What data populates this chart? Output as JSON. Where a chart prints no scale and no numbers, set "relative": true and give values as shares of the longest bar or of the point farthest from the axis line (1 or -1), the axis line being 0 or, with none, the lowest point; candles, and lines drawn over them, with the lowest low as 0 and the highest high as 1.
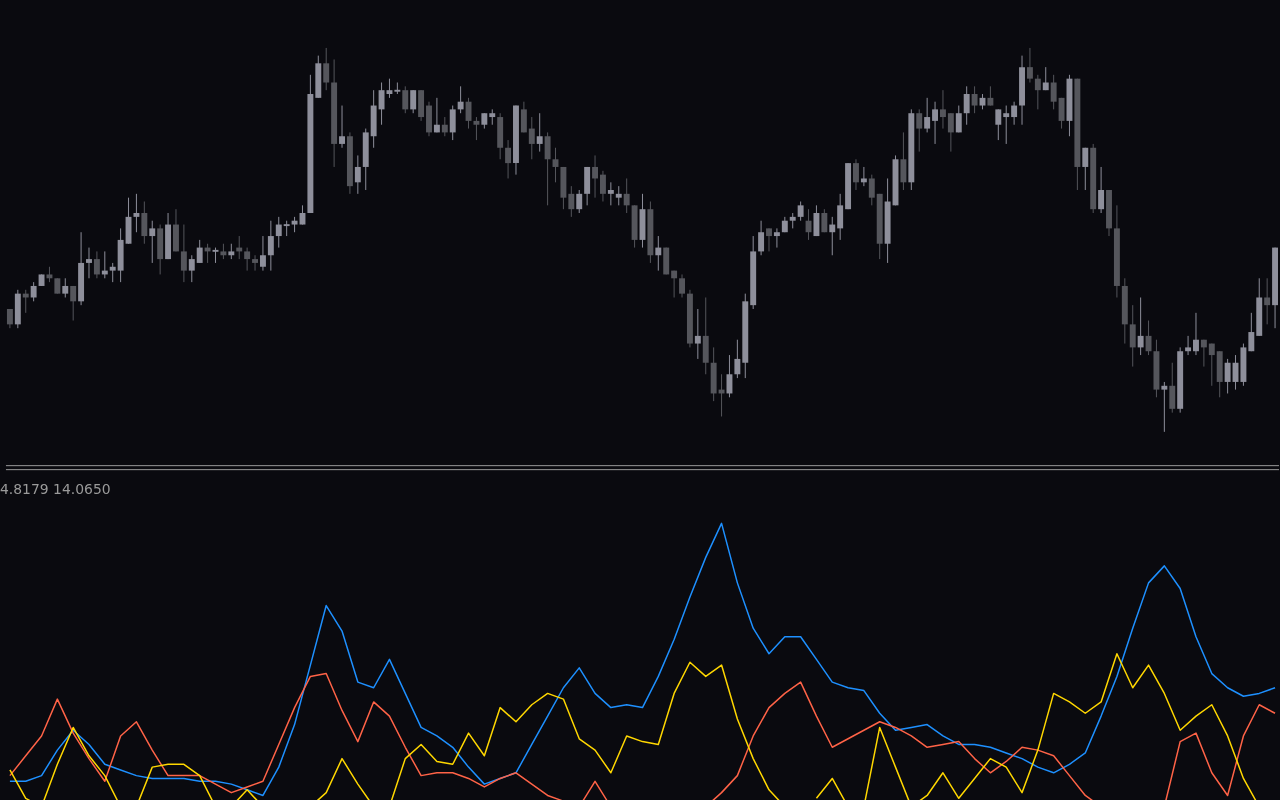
{
  "chart_data": [
    {
      "type": "candlestick",
      "relative": true,
      "tick_labels": false,
      "colors": [
        "#55565c",
        "#8e8f9b",
        "#55565c",
        "#8e8f9b",
        "#8e8f9b",
        "#55565c",
        "#55565c",
        "#8e8f9b",
        "#55565c",
        "#8e8f9b",
        "#8e8f9b",
        "#55565c",
        "#8e8f9b",
        "#8e8f9b",
        "#8e8f9b",
        "#8e8f9b",
        "#8e8f9b",
        "#55565c",
        "#8e8f9b",
        "#55565c",
        "#8e8f9b",
        "#55565c",
        "#55565c",
        "#8e8f9b",
        "#8e8f9b",
        "#55565c",
        "#8e8f9b",
        "#55565c",
        "#8e8f9b",
        "#55565c",
        "#55565c",
        "#55565c",
        "#8e8f9b",
        "#8e8f9b",
        "#8e8f9b",
        "#8e8f9b",
        "#8e8f9b",
        "#8e8f9b",
        "#8e8f9b",
        "#8e8f9b",
        "#55565c",
        "#55565c",
        "#8e8f9b",
        "#55565c",
        "#8e8f9b",
        "#8e8f9b",
        "#8e8f9b",
        "#8e8f9b",
        "#8e8f9b",
        "#8e8f9b",
        "#55565c",
        "#8e8f9b",
        "#55565c",
        "#55565c",
        "#8e8f9b",
        "#55565c",
        "#8e8f9b",
        "#8e8f9b",
        "#55565c",
        "#55565c",
        "#8e8f9b",
        "#8e8f9b",
        "#55565c",
        "#55565c",
        "#8e8f9b",
        "#55565c",
        "#55565c",
        "#8e8f9b",
        "#55565c",
        "#55565c",
        "#55565c",
        "#55565c",
        "#8e8f9b",
        "#8e8f9b",
        "#55565c",
        "#55565c",
        "#8e8f9b",
        "#8e8f9b",
        "#55565c",
        "#55565c",
        "#8e8f9b",
        "#55565c",
        "#8e8f9b",
        "#55565c",
        "#55565c",
        "#55565c",
        "#55565c",
        "#8e8f9b",
        "#55565c",
        "#55565c",
        "#55565c",
        "#8e8f9b",
        "#8e8f9b",
        "#8e8f9b",
        "#8e8f9b",
        "#8e8f9b",
        "#55565c",
        "#8e8f9b",
        "#8e8f9b",
        "#8e8f9b",
        "#8e8f9b",
        "#55565c",
        "#8e8f9b",
        "#55565c",
        "#8e8f9b",
        "#8e8f9b",
        "#8e8f9b",
        "#55565c",
        "#8e8f9b",
        "#55565c",
        "#55565c",
        "#8e8f9b",
        "#8e8f9b",
        "#55565c",
        "#8e8f9b",
        "#55565c",
        "#8e8f9b",
        "#8e8f9b",
        "#55565c",
        "#55565c",
        "#8e8f9b",
        "#8e8f9b",
        "#55565c",
        "#8e8f9b",
        "#55565c",
        "#8e8f9b",
        "#8e8f9b",
        "#8e8f9b",
        "#8e8f9b",
        "#55565c",
        "#55565c",
        "#8e8f9b",
        "#55565c",
        "#55565c",
        "#8e8f9b",
        "#55565c",
        "#8e8f9b",
        "#55565c",
        "#8e8f9b",
        "#55565c",
        "#55565c",
        "#55565c",
        "#55565c",
        "#8e8f9b",
        "#55565c",
        "#55565c",
        "#8e8f9b",
        "#55565c",
        "#8e8f9b",
        "#8e8f9b",
        "#8e8f9b",
        "#55565c",
        "#55565c",
        "#55565c",
        "#8e8f9b",
        "#8e8f9b",
        "#8e8f9b",
        "#8e8f9b",
        "#8e8f9b",
        "#55565c",
        "#8e8f9b"
      ],
      "categories": [
        null,
        null,
        null,
        null,
        null,
        null,
        null,
        null,
        null,
        null,
        null,
        null,
        null,
        null,
        null,
        null,
        null,
        null,
        null,
        null,
        null,
        null,
        null,
        null,
        null,
        null,
        null,
        null,
        null,
        null,
        null,
        null,
        null,
        null,
        null,
        null,
        null,
        null,
        null,
        null,
        null,
        null,
        null,
        null,
        null,
        null,
        null,
        null,
        null,
        null,
        null,
        null,
        null,
        null,
        null,
        null,
        null,
        null,
        null,
        null,
        null,
        null,
        null,
        null,
        null,
        null,
        null,
        null,
        null,
        null,
        null,
        null,
        null,
        null,
        null,
        null,
        null,
        null,
        null,
        null,
        null,
        null,
        null,
        null,
        null,
        null,
        null,
        null,
        null,
        null,
        null,
        null,
        null,
        null,
        null,
        null,
        null,
        null,
        null,
        null,
        null,
        null,
        null,
        null,
        null,
        null,
        null,
        null,
        null,
        null,
        null,
        null,
        null,
        null,
        null,
        null,
        null,
        null,
        null,
        null,
        null,
        null,
        null,
        null,
        null,
        null,
        null,
        null,
        null,
        null,
        null,
        null,
        null,
        null,
        null,
        null,
        null,
        null,
        null,
        null,
        null,
        null,
        null,
        null,
        null,
        null,
        null,
        null,
        null,
        null,
        null,
        null,
        null,
        null,
        null,
        null,
        null,
        null,
        null,
        null,
        null
      ],
      "ohlc": [
        [
          0.32,
          0.32,
          0.27,
          0.28
        ],
        [
          0.28,
          0.37,
          0.27,
          0.36
        ],
        [
          0.36,
          0.37,
          0.31,
          0.35
        ],
        [
          0.35,
          0.39,
          0.34,
          0.38
        ],
        [
          0.38,
          0.41,
          0.38,
          0.41
        ],
        [
          0.41,
          0.43,
          0.39,
          0.4
        ],
        [
          0.4,
          0.4,
          0.36,
          0.36
        ],
        [
          0.36,
          0.4,
          0.35,
          0.38
        ],
        [
          0.38,
          0.38,
          0.29,
          0.34
        ],
        [
          0.34,
          0.52,
          0.33,
          0.44
        ],
        [
          0.44,
          0.48,
          0.4,
          0.45
        ],
        [
          0.45,
          0.47,
          0.4,
          0.41
        ],
        [
          0.41,
          0.47,
          0.4,
          0.42
        ],
        [
          0.42,
          0.44,
          0.39,
          0.43
        ],
        [
          0.42,
          0.53,
          0.39,
          0.5
        ],
        [
          0.49,
          0.61,
          0.49,
          0.56
        ],
        [
          0.56,
          0.62,
          0.52,
          0.57
        ],
        [
          0.57,
          0.6,
          0.49,
          0.51
        ],
        [
          0.51,
          0.55,
          0.44,
          0.53
        ],
        [
          0.53,
          0.54,
          0.41,
          0.45
        ],
        [
          0.45,
          0.57,
          0.45,
          0.54
        ],
        [
          0.54,
          0.58,
          0.47,
          0.47
        ],
        [
          0.47,
          0.54,
          0.39,
          0.42
        ],
        [
          0.42,
          0.46,
          0.39,
          0.45
        ],
        [
          0.44,
          0.5,
          0.44,
          0.48
        ],
        [
          0.48,
          0.49,
          0.44,
          0.47
        ],
        [
          0.469,
          0.48,
          0.44,
          0.474
        ],
        [
          0.47,
          0.49,
          0.45,
          0.46
        ],
        [
          0.46,
          0.49,
          0.45,
          0.47
        ],
        [
          0.48,
          0.51,
          0.45,
          0.47
        ],
        [
          0.47,
          0.48,
          0.42,
          0.45
        ],
        [
          0.45,
          0.46,
          0.42,
          0.44
        ],
        [
          0.43,
          0.51,
          0.42,
          0.46
        ],
        [
          0.46,
          0.55,
          0.42,
          0.51
        ],
        [
          0.51,
          0.56,
          0.48,
          0.54
        ],
        [
          0.536,
          0.55,
          0.51,
          0.541
        ],
        [
          0.54,
          0.56,
          0.52,
          0.55
        ],
        [
          0.54,
          0.59,
          0.54,
          0.57
        ],
        [
          0.57,
          0.93,
          0.57,
          0.88
        ],
        [
          0.87,
          0.98,
          0.87,
          0.96
        ],
        [
          0.96,
          1,
          0.89,
          0.91
        ],
        [
          0.91,
          0.97,
          0.69,
          0.75
        ],
        [
          0.75,
          0.85,
          0.74,
          0.77
        ],
        [
          0.77,
          0.78,
          0.62,
          0.64
        ],
        [
          0.65,
          0.72,
          0.62,
          0.69
        ],
        [
          0.69,
          0.79,
          0.63,
          0.78
        ],
        [
          0.77,
          0.89,
          0.74,
          0.85
        ],
        [
          0.84,
          0.91,
          0.8,
          0.89
        ],
        [
          0.88,
          0.92,
          0.87,
          0.89
        ],
        [
          0.886,
          0.91,
          0.88,
          0.891
        ],
        [
          0.89,
          0.9,
          0.83,
          0.84
        ],
        [
          0.84,
          0.89,
          0.83,
          0.89
        ],
        [
          0.89,
          0.89,
          0.81,
          0.82
        ],
        [
          0.85,
          0.86,
          0.77,
          0.78
        ],
        [
          0.78,
          0.87,
          0.78,
          0.8
        ],
        [
          0.8,
          0.82,
          0.77,
          0.78
        ],
        [
          0.78,
          0.85,
          0.76,
          0.84
        ],
        [
          0.84,
          0.9,
          0.83,
          0.86
        ],
        [
          0.86,
          0.87,
          0.79,
          0.81
        ],
        [
          0.81,
          0.82,
          0.76,
          0.8
        ],
        [
          0.8,
          0.83,
          0.79,
          0.83
        ],
        [
          0.82,
          0.84,
          0.8,
          0.83
        ],
        [
          0.82,
          0.83,
          0.71,
          0.74
        ],
        [
          0.74,
          0.76,
          0.66,
          0.7
        ],
        [
          0.7,
          0.85,
          0.67,
          0.85
        ],
        [
          0.84,
          0.86,
          0.78,
          0.78
        ],
        [
          0.79,
          0.82,
          0.71,
          0.75
        ],
        [
          0.75,
          0.83,
          0.73,
          0.77
        ],
        [
          0.77,
          0.78,
          0.59,
          0.71
        ],
        [
          0.71,
          0.74,
          0.65,
          0.69
        ],
        [
          0.69,
          0.69,
          0.58,
          0.61
        ],
        [
          0.62,
          0.64,
          0.56,
          0.58
        ],
        [
          0.58,
          0.63,
          0.57,
          0.62
        ],
        [
          0.62,
          0.69,
          0.59,
          0.69
        ],
        [
          0.69,
          0.72,
          0.61,
          0.66
        ],
        [
          0.67,
          0.68,
          0.6,
          0.62
        ],
        [
          0.62,
          0.65,
          0.59,
          0.63
        ],
        [
          0.61,
          0.64,
          0.59,
          0.62
        ],
        [
          0.62,
          0.66,
          0.57,
          0.59
        ],
        [
          0.59,
          0.59,
          0.48,
          0.5
        ],
        [
          0.5,
          0.62,
          0.48,
          0.58
        ],
        [
          0.58,
          0.6,
          0.44,
          0.46
        ],
        [
          0.46,
          0.51,
          0.42,
          0.48
        ],
        [
          0.48,
          0.48,
          0.41,
          0.41
        ],
        [
          0.42,
          0.42,
          0.35,
          0.4
        ],
        [
          0.4,
          0.41,
          0.35,
          0.36
        ],
        [
          0.36,
          0.37,
          0.22,
          0.23
        ],
        [
          0.23,
          0.32,
          0.19,
          0.25
        ],
        [
          0.25,
          0.35,
          0.15,
          0.18
        ],
        [
          0.18,
          0.22,
          0.08,
          0.1
        ],
        [
          0.11,
          0.15,
          0.04,
          0.1
        ],
        [
          0.1,
          0.2,
          0.09,
          0.15
        ],
        [
          0.15,
          0.24,
          0.14,
          0.19
        ],
        [
          0.18,
          0.36,
          0.14,
          0.34
        ],
        [
          0.33,
          0.51,
          0.32,
          0.47
        ],
        [
          0.47,
          0.55,
          0.46,
          0.52
        ],
        [
          0.53,
          0.53,
          0.47,
          0.51
        ],
        [
          0.51,
          0.53,
          0.48,
          0.52
        ],
        [
          0.52,
          0.56,
          0.52,
          0.55
        ],
        [
          0.55,
          0.57,
          0.53,
          0.56
        ],
        [
          0.56,
          0.6,
          0.55,
          0.59
        ],
        [
          0.55,
          0.58,
          0.5,
          0.52
        ],
        [
          0.51,
          0.59,
          0.51,
          0.57
        ],
        [
          0.57,
          0.58,
          0.52,
          0.52
        ],
        [
          0.52,
          0.56,
          0.46,
          0.54
        ],
        [
          0.53,
          0.62,
          0.5,
          0.59
        ],
        [
          0.58,
          0.7,
          0.58,
          0.7
        ],
        [
          0.7,
          0.71,
          0.63,
          0.65
        ],
        [
          0.65,
          0.69,
          0.64,
          0.66
        ],
        [
          0.66,
          0.67,
          0.59,
          0.61
        ],
        [
          0.62,
          0.62,
          0.45,
          0.49
        ],
        [
          0.49,
          0.66,
          0.44,
          0.6
        ],
        [
          0.59,
          0.72,
          0.59,
          0.71
        ],
        [
          0.71,
          0.78,
          0.63,
          0.65
        ],
        [
          0.65,
          0.84,
          0.63,
          0.83
        ],
        [
          0.83,
          0.84,
          0.73,
          0.79
        ],
        [
          0.79,
          0.87,
          0.78,
          0.82
        ],
        [
          0.81,
          0.86,
          0.75,
          0.84
        ],
        [
          0.84,
          0.89,
          0.79,
          0.82
        ],
        [
          0.83,
          0.83,
          0.73,
          0.78
        ],
        [
          0.78,
          0.85,
          0.78,
          0.83
        ],
        [
          0.83,
          0.9,
          0.8,
          0.88
        ],
        [
          0.88,
          0.9,
          0.83,
          0.85
        ],
        [
          0.85,
          0.88,
          0.84,
          0.87
        ],
        [
          0.87,
          0.9,
          0.85,
          0.85
        ],
        [
          0.8,
          0.84,
          0.76,
          0.84
        ],
        [
          0.82,
          0.85,
          0.75,
          0.83
        ],
        [
          0.82,
          0.86,
          0.8,
          0.85
        ],
        [
          0.85,
          0.98,
          0.8,
          0.95
        ],
        [
          0.95,
          1,
          0.91,
          0.92
        ],
        [
          0.92,
          0.93,
          0.84,
          0.89
        ],
        [
          0.89,
          0.95,
          0.89,
          0.91
        ],
        [
          0.91,
          0.93,
          0.84,
          0.86
        ],
        [
          0.87,
          0.87,
          0.79,
          0.81
        ],
        [
          0.81,
          0.93,
          0.77,
          0.92
        ],
        [
          0.92,
          0.92,
          0.63,
          0.69
        ],
        [
          0.69,
          0.74,
          0.63,
          0.74
        ],
        [
          0.74,
          0.75,
          0.57,
          0.58
        ],
        [
          0.58,
          0.69,
          0.57,
          0.63
        ],
        [
          0.63,
          0.63,
          0.51,
          0.53
        ],
        [
          0.53,
          0.59,
          0.35,
          0.38
        ],
        [
          0.38,
          0.4,
          0.23,
          0.28
        ],
        [
          0.28,
          0.33,
          0.17,
          0.22
        ],
        [
          0.22,
          0.35,
          0.2,
          0.25
        ],
        [
          0.25,
          0.29,
          0.2,
          0.21
        ],
        [
          0.21,
          0.24,
          0.09,
          0.11
        ],
        [
          0.11,
          0.13,
          0,
          0.12
        ],
        [
          0.12,
          0.18,
          0.05,
          0.06
        ],
        [
          0.06,
          0.22,
          0.05,
          0.21
        ],
        [
          0.21,
          0.25,
          0.2,
          0.22
        ],
        [
          0.21,
          0.31,
          0.2,
          0.24
        ],
        [
          0.24,
          0.24,
          0.17,
          0.22
        ],
        [
          0.23,
          0.23,
          0.12,
          0.2
        ],
        [
          0.21,
          0.21,
          0.09,
          0.13
        ],
        [
          0.13,
          0.19,
          0.1,
          0.18
        ],
        [
          0.13,
          0.2,
          0.11,
          0.18
        ],
        [
          0.13,
          0.23,
          0.12,
          0.22
        ],
        [
          0.21,
          0.31,
          0.21,
          0.26
        ],
        [
          0.25,
          0.4,
          0.25,
          0.35
        ],
        [
          0.35,
          0.4,
          0.28,
          0.33
        ],
        [
          0.33,
          0.48,
          0.27,
          0.48
        ]
      ]
    },
    {
      "type": "line",
      "relative": true,
      "tick_labels": false,
      "annotations": [
        "4.8179 14.0650"
      ],
      "categories": [
        null,
        null,
        null,
        null,
        null,
        null,
        null,
        null,
        null,
        null,
        null,
        null,
        null,
        null,
        null,
        null,
        null,
        null,
        null,
        null,
        null,
        null,
        null,
        null,
        null,
        null,
        null,
        null,
        null,
        null,
        null,
        null,
        null,
        null,
        null,
        null,
        null,
        null,
        null,
        null,
        null,
        null,
        null,
        null,
        null,
        null,
        null,
        null,
        null,
        null,
        null,
        null,
        null,
        null,
        null,
        null,
        null,
        null,
        null,
        null,
        null,
        null,
        null,
        null,
        null,
        null,
        null,
        null,
        null,
        null,
        null,
        null,
        null,
        null,
        null,
        null,
        null,
        null,
        null,
        null,
        null
      ],
      "series": [
        {
          "color": "#1e90ff",
          "values": [
            0.09,
            0.09,
            0.11,
            0.2,
            0.27,
            0.22,
            0.15,
            0.13,
            0.11,
            0.1,
            0.1,
            0.1,
            0.09,
            0.09,
            0.08,
            0.06,
            0.04,
            0.14,
            0.29,
            0.5,
            0.71,
            0.62,
            0.44,
            0.42,
            0.52,
            0.4,
            0.28,
            0.25,
            0.21,
            0.14,
            0.08,
            0.1,
            0.12,
            0.22,
            0.32,
            0.42,
            0.49,
            0.4,
            0.35,
            0.36,
            0.35,
            0.46,
            0.59,
            0.74,
            0.88,
            1.0,
            0.79,
            0.63,
            0.54,
            0.6,
            0.6,
            0.52,
            0.44,
            0.42,
            0.41,
            0.33,
            0.27,
            0.28,
            0.29,
            0.25,
            0.22,
            0.22,
            0.21,
            0.19,
            0.17,
            0.14,
            0.12,
            0.15,
            0.19,
            0.32,
            0.46,
            0.63,
            0.79,
            0.85,
            0.77,
            0.6,
            0.47,
            0.42,
            0.39,
            0.4,
            0.42
          ]
        },
        {
          "color": "#ff6347",
          "values": [
            0.11,
            0.18,
            0.25,
            0.38,
            0.26,
            0.17,
            0.09,
            0.25,
            0.3,
            0.2,
            0.11,
            0.11,
            0.11,
            0.08,
            0.05,
            0.07,
            0.09,
            0.22,
            0.35,
            0.46,
            0.47,
            0.34,
            0.23,
            0.37,
            0.32,
            0.21,
            0.11,
            0.12,
            0.12,
            0.1,
            0.07,
            0.1,
            0.12,
            0.08,
            0.04,
            0.02,
            0,
            0.09,
            0,
            null,
            null,
            null,
            null,
            null,
            0,
            0.05,
            0.11,
            0.25,
            0.35,
            0.4,
            0.44,
            0.32,
            0.21,
            0.24,
            0.27,
            0.3,
            0.28,
            0.25,
            0.21,
            0.22,
            0.23,
            0.17,
            0.12,
            0.16,
            0.21,
            0.2,
            0.18,
            0.11,
            0.04,
            0,
            null,
            null,
            null,
            0,
            0.23,
            0.26,
            0.12,
            0.04,
            0.25,
            0.36,
            0.33
          ]
        },
        {
          "color": "#ffd700",
          "values": [
            0.13,
            0.03,
            0,
            0.15,
            0.28,
            0.18,
            0.11,
            0,
            0,
            0.14,
            0.15,
            0.15,
            0.11,
            0,
            0,
            0.06,
            0,
            null,
            null,
            0,
            0.05,
            0.17,
            0.08,
            0,
            0,
            0.17,
            0.22,
            0.16,
            0.15,
            0.26,
            0.18,
            0.35,
            0.3,
            0.36,
            0.4,
            0.38,
            0.24,
            0.2,
            0.12,
            0.25,
            0.23,
            0.22,
            0.4,
            0.51,
            0.46,
            0.5,
            0.31,
            0.17,
            0.06,
            0,
            null,
            0.03,
            0.1,
            0,
            0,
            0.28,
            0.14,
            0,
            0.04,
            0.12,
            0.03,
            0.1,
            0.17,
            0.14,
            0.05,
            0.2,
            0.4,
            0.37,
            0.33,
            0.37,
            0.54,
            0.42,
            0.5,
            0.4,
            0.27,
            0.32,
            0.36,
            0.25,
            0.1,
            0,
            null
          ]
        }
      ]
    }
  ]
}
